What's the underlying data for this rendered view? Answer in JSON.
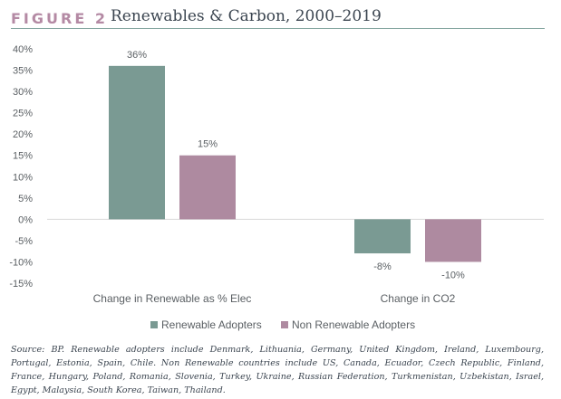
{
  "figure": {
    "label": "FIGURE 2",
    "title": "Renewables & Carbon, 2000–2019"
  },
  "chart_data": {
    "type": "bar",
    "categories": [
      "Change in Renewable as % Elec",
      "Change in CO2"
    ],
    "series": [
      {
        "name": "Renewable Adopters",
        "values": [
          36,
          -8
        ],
        "labels": [
          "36%",
          "-8%"
        ],
        "color": "#7a9a93"
      },
      {
        "name": "Non Renewable Adopters",
        "values": [
          15,
          -10
        ],
        "labels": [
          "15%",
          "-10%"
        ],
        "color": "#ae8aa0"
      }
    ],
    "ylim": [
      -15,
      40
    ],
    "yticks": [
      40,
      35,
      30,
      25,
      20,
      15,
      10,
      5,
      0,
      -5,
      -10,
      -15
    ],
    "ytick_labels": [
      "40%",
      "35%",
      "30%",
      "25%",
      "20%",
      "15%",
      "10%",
      "5%",
      "0%",
      "-5%",
      "-10%",
      "-15%"
    ],
    "legend_position": "bottom-center",
    "grid": false
  },
  "source_note": "Source: BP. Renewable adopters include Denmark, Lithuania, Germany, United Kingdom, Ireland, Luxembourg, Portugal, Estonia, Spain, Chile.  Non Renewable countries include US, Canada, Ecuador, Czech Republic, Finland, France, Hungary, Poland, Romania, Slovenia, Turkey, Ukraine, Russian Federation, Turkmenistan, Uzbekistan, Israel, Egypt, Malaysia, South Korea, Taiwan, Thailand."
}
